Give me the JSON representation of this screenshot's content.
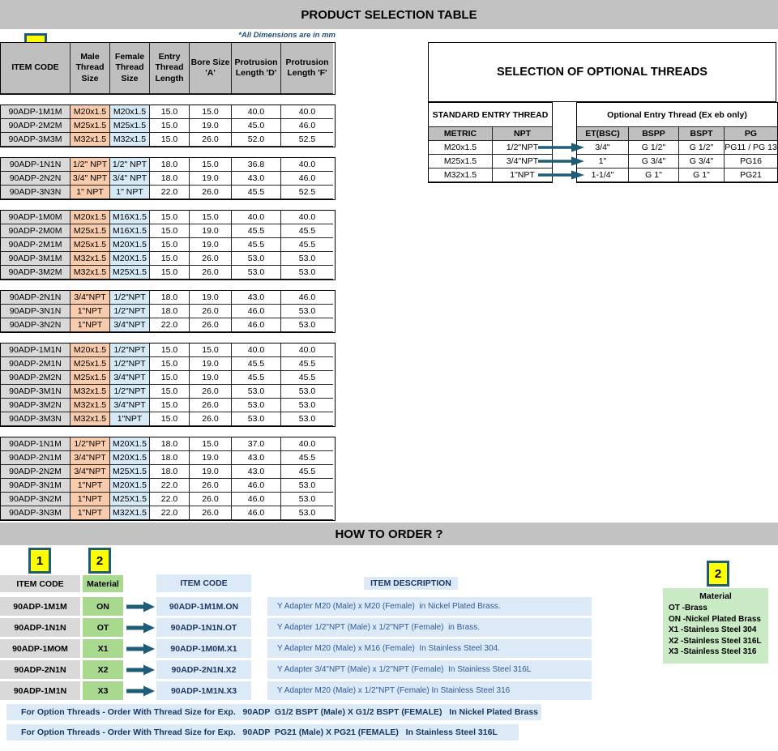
{
  "page": {
    "title": "PRODUCT SELECTION TABLE",
    "dimensions_note": "*All Dimensions are in mm",
    "how_to_order_title": "HOW TO ORDER ?",
    "step1_label": "1",
    "step2_label": "2"
  },
  "colors": {
    "section_bar": "#C2C2C2",
    "header_gray": "#BFBFBF",
    "code_gray": "#D9D9D9",
    "male_peach": "#F8CBAD",
    "female_blue": "#D6E9F5",
    "material_green": "#A9D88F",
    "legend_green": "#C9EAC5",
    "light_blue": "#DCE9F7",
    "badge_yellow": "#FFFF00",
    "arrow_teal": "#1E5C77",
    "navy_text": "#1F3864"
  },
  "main_table": {
    "headers": [
      "ITEM CODE",
      "Male Thread Size",
      "Female Thread Size",
      "Entry Thread Length",
      "Bore Size 'A'",
      "Protrusion Length 'D'",
      "Protrusion Length 'F'"
    ],
    "groups": [
      {
        "rows": [
          {
            "code": "90ADP-1M1M",
            "male": "M20x1.5",
            "female": "M20x1.5",
            "entry": "15.0",
            "bore": "15.0",
            "d": "40.0",
            "f": "40.0"
          },
          {
            "code": "90ADP-2M2M",
            "male": "M25x1.5",
            "female": "M25x1.5",
            "entry": "15.0",
            "bore": "19.0",
            "d": "45.0",
            "f": "46.0"
          },
          {
            "code": "90ADP-3M3M",
            "male": "M32x1.5",
            "female": "M32x1.5",
            "entry": "15.0",
            "bore": "26.0",
            "d": "52.0",
            "f": "52.5"
          }
        ]
      },
      {
        "rows": [
          {
            "code": "90ADP-1N1N",
            "male": "1/2\" NPT",
            "female": "1/2\" NPT",
            "entry": "18.0",
            "bore": "15.0",
            "d": "36.8",
            "f": "40.0"
          },
          {
            "code": "90ADP-2N2N",
            "male": "3/4\" NPT",
            "female": "3/4\" NPT",
            "entry": "18.0",
            "bore": "19.0",
            "d": "43.0",
            "f": "46.0"
          },
          {
            "code": "90ADP-3N3N",
            "male": "1\" NPT",
            "female": "1\" NPT",
            "entry": "22.0",
            "bore": "26.0",
            "d": "45.5",
            "f": "52.5"
          }
        ]
      },
      {
        "rows": [
          {
            "code": "90ADP-1M0M",
            "male": "M20x1.5",
            "female": "M16X1.5",
            "entry": "15.0",
            "bore": "15.0",
            "d": "40.0",
            "f": "40.0"
          },
          {
            "code": "90ADP-2M0M",
            "male": "M25x1.5",
            "female": "M16X1.5",
            "entry": "15.0",
            "bore": "19.0",
            "d": "45.5",
            "f": "45.5"
          },
          {
            "code": "90ADP-2M1M",
            "male": "M25x1.5",
            "female": "M20X1.5",
            "entry": "15.0",
            "bore": "19.0",
            "d": "45.5",
            "f": "45.5"
          },
          {
            "code": "90ADP-3M1M",
            "male": "M32x1.5",
            "female": "M20X1.5",
            "entry": "15.0",
            "bore": "26.0",
            "d": "53.0",
            "f": "53.0"
          },
          {
            "code": "90ADP-3M2M",
            "male": "M32x1.5",
            "female": "M25X1.5",
            "entry": "15.0",
            "bore": "26.0",
            "d": "53.0",
            "f": "53.0"
          }
        ]
      },
      {
        "rows": [
          {
            "code": "90ADP-2N1N",
            "male": "3/4\"NPT",
            "female": "1/2\"NPT",
            "entry": "18.0",
            "bore": "19.0",
            "d": "43.0",
            "f": "46.0"
          },
          {
            "code": "90ADP-3N1N",
            "male": "1\"NPT",
            "female": "1/2\"NPT",
            "entry": "18.0",
            "bore": "26.0",
            "d": "46.0",
            "f": "53.0"
          },
          {
            "code": "90ADP-3N2N",
            "male": "1\"NPT",
            "female": "3/4\"NPT",
            "entry": "22.0",
            "bore": "26.0",
            "d": "46.0",
            "f": "53.0"
          }
        ]
      },
      {
        "rows": [
          {
            "code": "90ADP-1M1N",
            "male": "M20x1.5",
            "female": "1/2\"NPT",
            "entry": "15.0",
            "bore": "15.0",
            "d": "40.0",
            "f": "40.0"
          },
          {
            "code": "90ADP-2M1N",
            "male": "M25x1.5",
            "female": "1/2\"NPT",
            "entry": "15.0",
            "bore": "19.0",
            "d": "45.5",
            "f": "45.5"
          },
          {
            "code": "90ADP-2M2N",
            "male": "M25x1.5",
            "female": "3/4\"NPT",
            "entry": "15.0",
            "bore": "19.0",
            "d": "45.5",
            "f": "45.5"
          },
          {
            "code": "90ADP-3M1N",
            "male": "M32x1.5",
            "female": "1/2\"NPT",
            "entry": "15.0",
            "bore": "26.0",
            "d": "53.0",
            "f": "53.0"
          },
          {
            "code": "90ADP-3M2N",
            "male": "M32x1.5",
            "female": "3/4\"NPT",
            "entry": "15.0",
            "bore": "26.0",
            "d": "53.0",
            "f": "53.0"
          },
          {
            "code": "90ADP-3M3N",
            "male": "M32x1.5",
            "female": "1\"NPT",
            "entry": "15.0",
            "bore": "26.0",
            "d": "53.0",
            "f": "53.0"
          }
        ]
      },
      {
        "rows": [
          {
            "code": "90ADP-1N1M",
            "male": "1/2\"NPT",
            "female": "M20X1.5",
            "entry": "18.0",
            "bore": "15.0",
            "d": "37.0",
            "f": "40.0"
          },
          {
            "code": "90ADP-2N1M",
            "male": "3/4\"NPT",
            "female": "M20X1.5",
            "entry": "18.0",
            "bore": "19.0",
            "d": "43.0",
            "f": "45.5"
          },
          {
            "code": "90ADP-2N2M",
            "male": "3/4\"NPT",
            "female": "M25X1.5",
            "entry": "18.0",
            "bore": "19.0",
            "d": "43.0",
            "f": "45.5"
          },
          {
            "code": "90ADP-3N1M",
            "male": "1\"NPT",
            "female": "M20X1.5",
            "entry": "22.0",
            "bore": "26.0",
            "d": "46.0",
            "f": "53.0"
          },
          {
            "code": "90ADP-3N2M",
            "male": "1\"NPT",
            "female": "M25X1.5",
            "entry": "22.0",
            "bore": "26.0",
            "d": "46.0",
            "f": "53.0"
          },
          {
            "code": "90ADP-3N3M",
            "male": "1\"NPT",
            "female": "M32X1.5",
            "entry": "22.0",
            "bore": "26.0",
            "d": "46.0",
            "f": "53.0"
          }
        ]
      }
    ]
  },
  "optional": {
    "title": "SELECTION OF OPTIONAL THREADS",
    "standard_header": "STANDARD ENTRY THREAD",
    "optional_header": "Optional Entry Thread (Ex eb only)",
    "standard_columns": [
      "METRIC",
      "NPT"
    ],
    "optional_columns": [
      "ET(BSC)",
      "BSPP",
      "BSPT",
      "PG"
    ],
    "rows": [
      {
        "metric": "M20x1.5",
        "npt": "1/2\"NPT",
        "et": "3/4\"",
        "bspp": "G 1/2\"",
        "bspt": "G 1/2\"",
        "pg": "PG11 / PG 13"
      },
      {
        "metric": "M25x1.5",
        "npt": "3/4\"NPT",
        "et": "1\"",
        "bspp": "G 3/4\"",
        "bspt": "G 3/4\"",
        "pg": "PG16"
      },
      {
        "metric": "M32x1.5",
        "npt": "1\"NPT",
        "et": "1-1/4\"",
        "bspp": "G 1\"",
        "bspt": "G 1\"",
        "pg": "PG21"
      }
    ]
  },
  "hto": {
    "col1_header": "ITEM CODE",
    "col2_header": "Material",
    "col3_header": "ITEM CODE",
    "col4_header": "ITEM DESCRIPTION",
    "rows": [
      {
        "code": "90ADP-1M1M",
        "material": "ON",
        "full_code": "90ADP-1M1M.ON",
        "description": "Y Adapter M20 (Male) x M20 (Female)  in Nickel Plated Brass."
      },
      {
        "code": "90ADP-1N1N",
        "material": "OT",
        "full_code": "90ADP-1N1N.OT",
        "description": "Y Adapter 1/2\"NPT (Male) x 1/2\"NPT (Female)  in Brass."
      },
      {
        "code": "90ADP-1MOM",
        "material": "X1",
        "full_code": "90ADP-1M0M.X1",
        "description": "Y Adapter M20 (Male) x M16 (Female)  In Stainless Steel 304."
      },
      {
        "code": "90ADP-2N1N",
        "material": "X2",
        "full_code": "90ADP-2N1N.X2",
        "description": "Y Adapter 3/4\"NPT (Male) x 1/2\"NPT (Female)  In Stainless Steel 316L"
      },
      {
        "code": "90ADP-1M1N",
        "material": "X3",
        "full_code": "90ADP-1M1N.X3",
        "description": "Y Adapter M20 (Male) x 1/2\"NPT (Female) In Stainless Steel 316"
      }
    ],
    "legend": {
      "title": "Material",
      "items": [
        "OT -Brass",
        "ON -Nickel Plated Brass",
        "X1 -Stainless Steel 304",
        "X2 -Stainless Steel 316L",
        "X3 -Stainless Steel 316"
      ]
    },
    "notes": [
      "For Option Threads - Order With Thread Size for Exp.   90ADP  G1/2 BSPT (Male) X G1/2 BSPT (FEMALE)   In Nickel Plated Brass",
      "For Option Threads - Order With Thread Size for Exp.   90ADP  PG21 (Male) X PG21 (FEMALE)   In Stainless Steel 316L"
    ]
  }
}
